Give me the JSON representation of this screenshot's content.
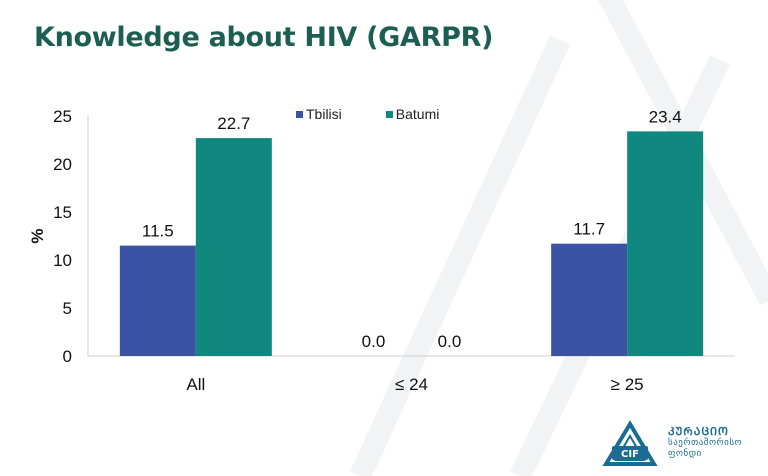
{
  "page": {
    "title": "Knowledge about HIV (GARPR)"
  },
  "colors": {
    "title": "#1c5e52",
    "tbilisi": "#3a53a4",
    "batumi": "#10877f"
  },
  "chart_data": {
    "type": "bar",
    "title": "",
    "xlabel": "",
    "ylabel": "%",
    "ylim": [
      0,
      25
    ],
    "yticks": [
      0,
      5,
      10,
      15,
      20,
      25
    ],
    "categories": [
      "All",
      "≤ 24",
      "≥ 25"
    ],
    "series": [
      {
        "name": "Tbilisi",
        "values": [
          11.5,
          0.0,
          11.7
        ],
        "labels": [
          "11.5",
          "0.0",
          "11.7"
        ],
        "color": "#3a53a4"
      },
      {
        "name": "Batumi",
        "values": [
          22.7,
          0.0,
          23.4
        ],
        "labels": [
          "22.7",
          "0.0",
          "23.4"
        ],
        "color": "#10877f"
      }
    ],
    "grid": false,
    "legend_position": "top-center"
  },
  "logo": {
    "mark": "CIF",
    "name": "ᲙᲣᲠᲐᲪᲘᲝ",
    "subtitle": "საერთაშორისო ფონდი",
    "icon": "cif-triangle-logo-icon"
  }
}
